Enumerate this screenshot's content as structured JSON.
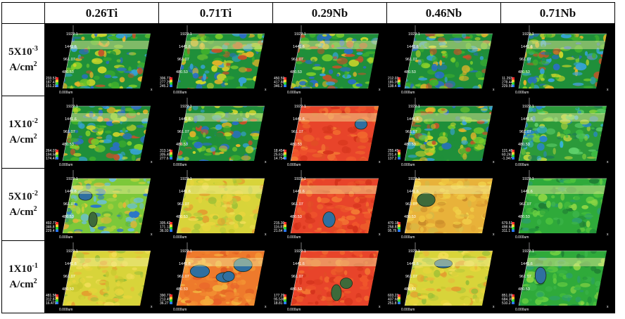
{
  "columns": [
    "0.26Ti",
    "0.71Ti",
    "0.29Nb",
    "0.46Nb",
    "0.71Nb"
  ],
  "rows": [
    {
      "value": "5X10",
      "exp": "-3",
      "unit": "A/cm",
      "unit_exp": "2",
      "cells": [
        {
          "ticks": [
            "1922.1",
            "1441.6",
            "961.07",
            "480.53"
          ],
          "scale": [
            "233.57",
            "187.41",
            "151.21"
          ],
          "origin": "0.000um",
          "palette": "mixed",
          "defects": 0
        },
        {
          "ticks": [
            "1922.1",
            "1441.6",
            "961.07",
            "480.53"
          ],
          "scale": [
            "306.77",
            "277.29",
            "245.2"
          ],
          "origin": "0.000um",
          "palette": "mixed",
          "defects": 0
        },
        {
          "ticks": [
            "1922.1",
            "1441.6",
            "961.07",
            "480.53"
          ],
          "scale": [
            "450.59",
            "417.88",
            "346.2"
          ],
          "origin": "0.000um",
          "palette": "mixed",
          "defects": 0
        },
        {
          "ticks": [
            "1922.1",
            "1441.6",
            "961.07",
            "480.53"
          ],
          "scale": [
            "212.03",
            "185.09",
            "138.4"
          ],
          "origin": "0.000um",
          "palette": "mixed",
          "defects": 0
        },
        {
          "ticks": [
            "1922.1",
            "1441.6",
            "961.07",
            "480.53"
          ],
          "scale": [
            "11.293",
            "278.44",
            "229.59"
          ],
          "origin": "0.000um",
          "palette": "mixed",
          "defects": 0
        }
      ]
    },
    {
      "value": "1X10",
      "exp": "-2",
      "unit": "A/cm",
      "unit_exp": "2",
      "cells": [
        {
          "ticks": [
            "1922.1",
            "1441.6",
            "961.07",
            "480.53"
          ],
          "scale": [
            "264.07",
            "194.58",
            "174.47"
          ],
          "origin": "0.000um",
          "palette": "mixed",
          "defects": 0
        },
        {
          "ticks": [
            "1922.1",
            "1441.6",
            "961.07",
            "480.53"
          ],
          "scale": [
            "313.14",
            "305.45",
            "277.6"
          ],
          "origin": "0.000um",
          "palette": "mixed",
          "defects": 0
        },
        {
          "ticks": [
            "1922.1",
            "1441.6",
            "961.07",
            "480.53"
          ],
          "scale": [
            "18.454",
            "25.616",
            "14.754"
          ],
          "origin": "0.000um",
          "palette": "red",
          "defects": 1
        },
        {
          "ticks": [
            "1922.1",
            "1441.6",
            "961.07",
            "480.53"
          ],
          "scale": [
            "255.45",
            "201.4",
            "137.2"
          ],
          "origin": "0.000um",
          "palette": "mixed",
          "defects": 0
        },
        {
          "ticks": [
            "1922.1",
            "1441.6",
            "961.07",
            "480.53"
          ],
          "scale": [
            "121.48",
            "60.243",
            "-1.347"
          ],
          "origin": "0.000um",
          "palette": "greenblue",
          "defects": 0
        }
      ]
    },
    {
      "value": "5X10",
      "exp": "-2",
      "unit": "A/cm",
      "unit_exp": "2",
      "cells": [
        {
          "ticks": [
            "1922.1",
            "1441.6",
            "961.07",
            "480.53"
          ],
          "scale": [
            "492.77",
            "346.8",
            "229.4"
          ],
          "origin": "0.000um",
          "palette": "greenyellow",
          "defects": 2
        },
        {
          "ticks": [
            "1922.1",
            "1441.6",
            "961.07",
            "480.53"
          ],
          "scale": [
            "305.42",
            "171.13",
            "36.93"
          ],
          "origin": "0.000um",
          "palette": "yellow",
          "defects": 0
        },
        {
          "ticks": [
            "1922.1",
            "1441.6",
            "961.07",
            "480.53"
          ],
          "scale": [
            "215.30",
            "116.81",
            "21.64"
          ],
          "origin": "0.000um",
          "palette": "red",
          "defects": 1
        },
        {
          "ticks": [
            "1922.1",
            "1441.6",
            "961.07",
            "480.53"
          ],
          "scale": [
            "470.18",
            "258.81",
            "95.76"
          ],
          "origin": "0.000um",
          "palette": "orange",
          "defects": 1
        },
        {
          "ticks": [
            "1922.1",
            "1441.6",
            "961.07",
            "480.53"
          ],
          "scale": [
            "679.51",
            "498.64",
            "311.1"
          ],
          "origin": "0.000um",
          "palette": "green",
          "defects": 0
        }
      ]
    },
    {
      "value": "1X10",
      "exp": "-1",
      "unit": "A/cm",
      "unit_exp": "2",
      "cells": [
        {
          "ticks": [
            "1922.1",
            "1441.6",
            "961.07",
            "480.53"
          ],
          "scale": [
            "481.56",
            "312.87",
            "16.471"
          ],
          "origin": "0.000um",
          "palette": "yellow",
          "defects": 0
        },
        {
          "ticks": [
            "1922.1",
            "1441.6",
            "961.07",
            "480.53"
          ],
          "scale": [
            "390.77",
            "213.49",
            "36.27"
          ],
          "origin": "0.000um",
          "palette": "orangepit",
          "defects": 4
        },
        {
          "ticks": [
            "1922.1",
            "1441.6",
            "961.07",
            "480.53"
          ],
          "scale": [
            "177.29",
            "95.538",
            "18.81"
          ],
          "origin": "0.000um",
          "palette": "red",
          "defects": 2
        },
        {
          "ticks": [
            "1922.1",
            "1441.6",
            "961.07",
            "480.53"
          ],
          "scale": [
            "603.23",
            "437.68",
            "251.8"
          ],
          "origin": "0.000um",
          "palette": "yellow",
          "defects": 1
        },
        {
          "ticks": [
            "1922.1",
            "1441.6",
            "961.07",
            "480.53"
          ],
          "scale": [
            "851.09",
            "684.35",
            "510.2"
          ],
          "origin": "0.000um",
          "palette": "green",
          "defects": 1
        }
      ]
    }
  ]
}
